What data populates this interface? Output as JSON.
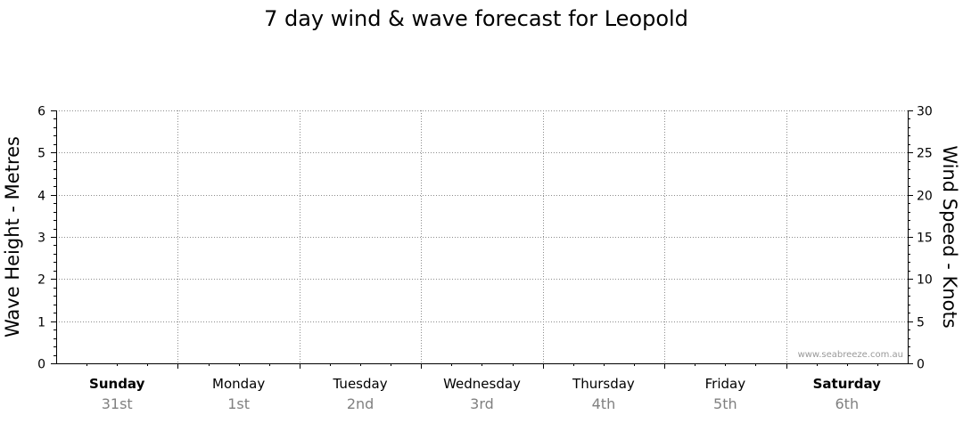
{
  "chart_data": {
    "type": "line",
    "title": "7 day wind & wave forecast for Leopold",
    "ylabel_left": "Wave Height - Metres",
    "ylabel_right": "Wind Speed - Knots",
    "ylim_left": [
      0,
      6
    ],
    "ylim_right": [
      0,
      30
    ],
    "yticks_left": [
      "0",
      "1",
      "2",
      "3",
      "4",
      "5",
      "6"
    ],
    "yticks_right": [
      "0",
      "5",
      "10",
      "15",
      "20",
      "25",
      "30"
    ],
    "grid": true,
    "days": [
      {
        "name": "Sunday",
        "date": "31st",
        "bold": true
      },
      {
        "name": "Monday",
        "date": "1st",
        "bold": false
      },
      {
        "name": "Tuesday",
        "date": "2nd",
        "bold": false
      },
      {
        "name": "Wednesday",
        "date": "3rd",
        "bold": false
      },
      {
        "name": "Thursday",
        "date": "4th",
        "bold": false
      },
      {
        "name": "Friday",
        "date": "5th",
        "bold": false
      },
      {
        "name": "Saturday",
        "date": "6th",
        "bold": true
      }
    ],
    "series": []
  },
  "watermark": "www.seabreeze.com.au"
}
